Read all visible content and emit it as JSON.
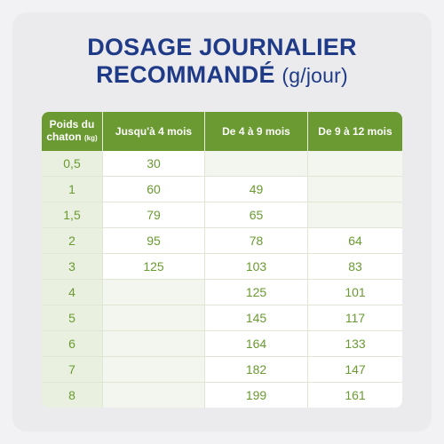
{
  "title": {
    "line1": "DOSAGE JOURNALIER",
    "line2": "RECOMMANDÉ",
    "unit": "(g/jour)"
  },
  "table": {
    "headers": {
      "weight_line1": "Poids du",
      "weight_line2": "chaton",
      "weight_unit": "(kg)",
      "col1": "Jusqu'à 4 mois",
      "col2": "De 4 à 9 mois",
      "col3": "De 9 à 12 mois"
    },
    "rows": [
      {
        "weight": "0,5",
        "c1": "30",
        "c2": "",
        "c3": ""
      },
      {
        "weight": "1",
        "c1": "60",
        "c2": "49",
        "c3": ""
      },
      {
        "weight": "1,5",
        "c1": "79",
        "c2": "65",
        "c3": ""
      },
      {
        "weight": "2",
        "c1": "95",
        "c2": "78",
        "c3": "64"
      },
      {
        "weight": "3",
        "c1": "125",
        "c2": "103",
        "c3": "83"
      },
      {
        "weight": "4",
        "c1": "",
        "c2": "125",
        "c3": "101"
      },
      {
        "weight": "5",
        "c1": "",
        "c2": "145",
        "c3": "117"
      },
      {
        "weight": "6",
        "c1": "",
        "c2": "164",
        "c3": "133"
      },
      {
        "weight": "7",
        "c1": "",
        "c2": "182",
        "c3": "147"
      },
      {
        "weight": "8",
        "c1": "",
        "c2": "199",
        "c3": "161"
      }
    ]
  }
}
